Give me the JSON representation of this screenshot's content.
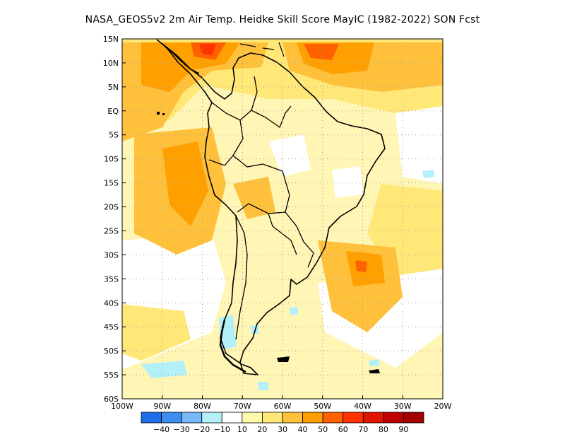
{
  "title": "NASA_GEOS5v2  2m Air Temp. Heidke Skill Score MayIC (1982-2022) SON Fcst",
  "map": {
    "lat_labels": [
      "15N",
      "10N",
      "5N",
      "EQ",
      "5S",
      "10S",
      "15S",
      "20S",
      "25S",
      "30S",
      "35S",
      "40S",
      "45S",
      "50S",
      "55S",
      "60S"
    ],
    "lon_labels": [
      "100W",
      "90W",
      "80W",
      "70W",
      "60W",
      "50W",
      "40W",
      "30W",
      "20W"
    ],
    "lat_range": [
      -60,
      15
    ],
    "lon_range": [
      -100,
      -20
    ]
  },
  "colorbar": {
    "labels": [
      "-40",
      "-30",
      "-20",
      "-10",
      "10",
      "20",
      "30",
      "40",
      "50",
      "60",
      "70",
      "80",
      "90"
    ],
    "colors": [
      "#1e6eeb",
      "#3c8ef0",
      "#78b9fa",
      "#b4f0fa",
      "#ffffff",
      "#fffaaa",
      "#ffe878",
      "#ffc03c",
      "#ffa000",
      "#ff6000",
      "#ff3200",
      "#e11400",
      "#c00000",
      "#a50000"
    ]
  },
  "palette": {
    "land_line": "#000000",
    "grid": "#a0a0a0"
  }
}
